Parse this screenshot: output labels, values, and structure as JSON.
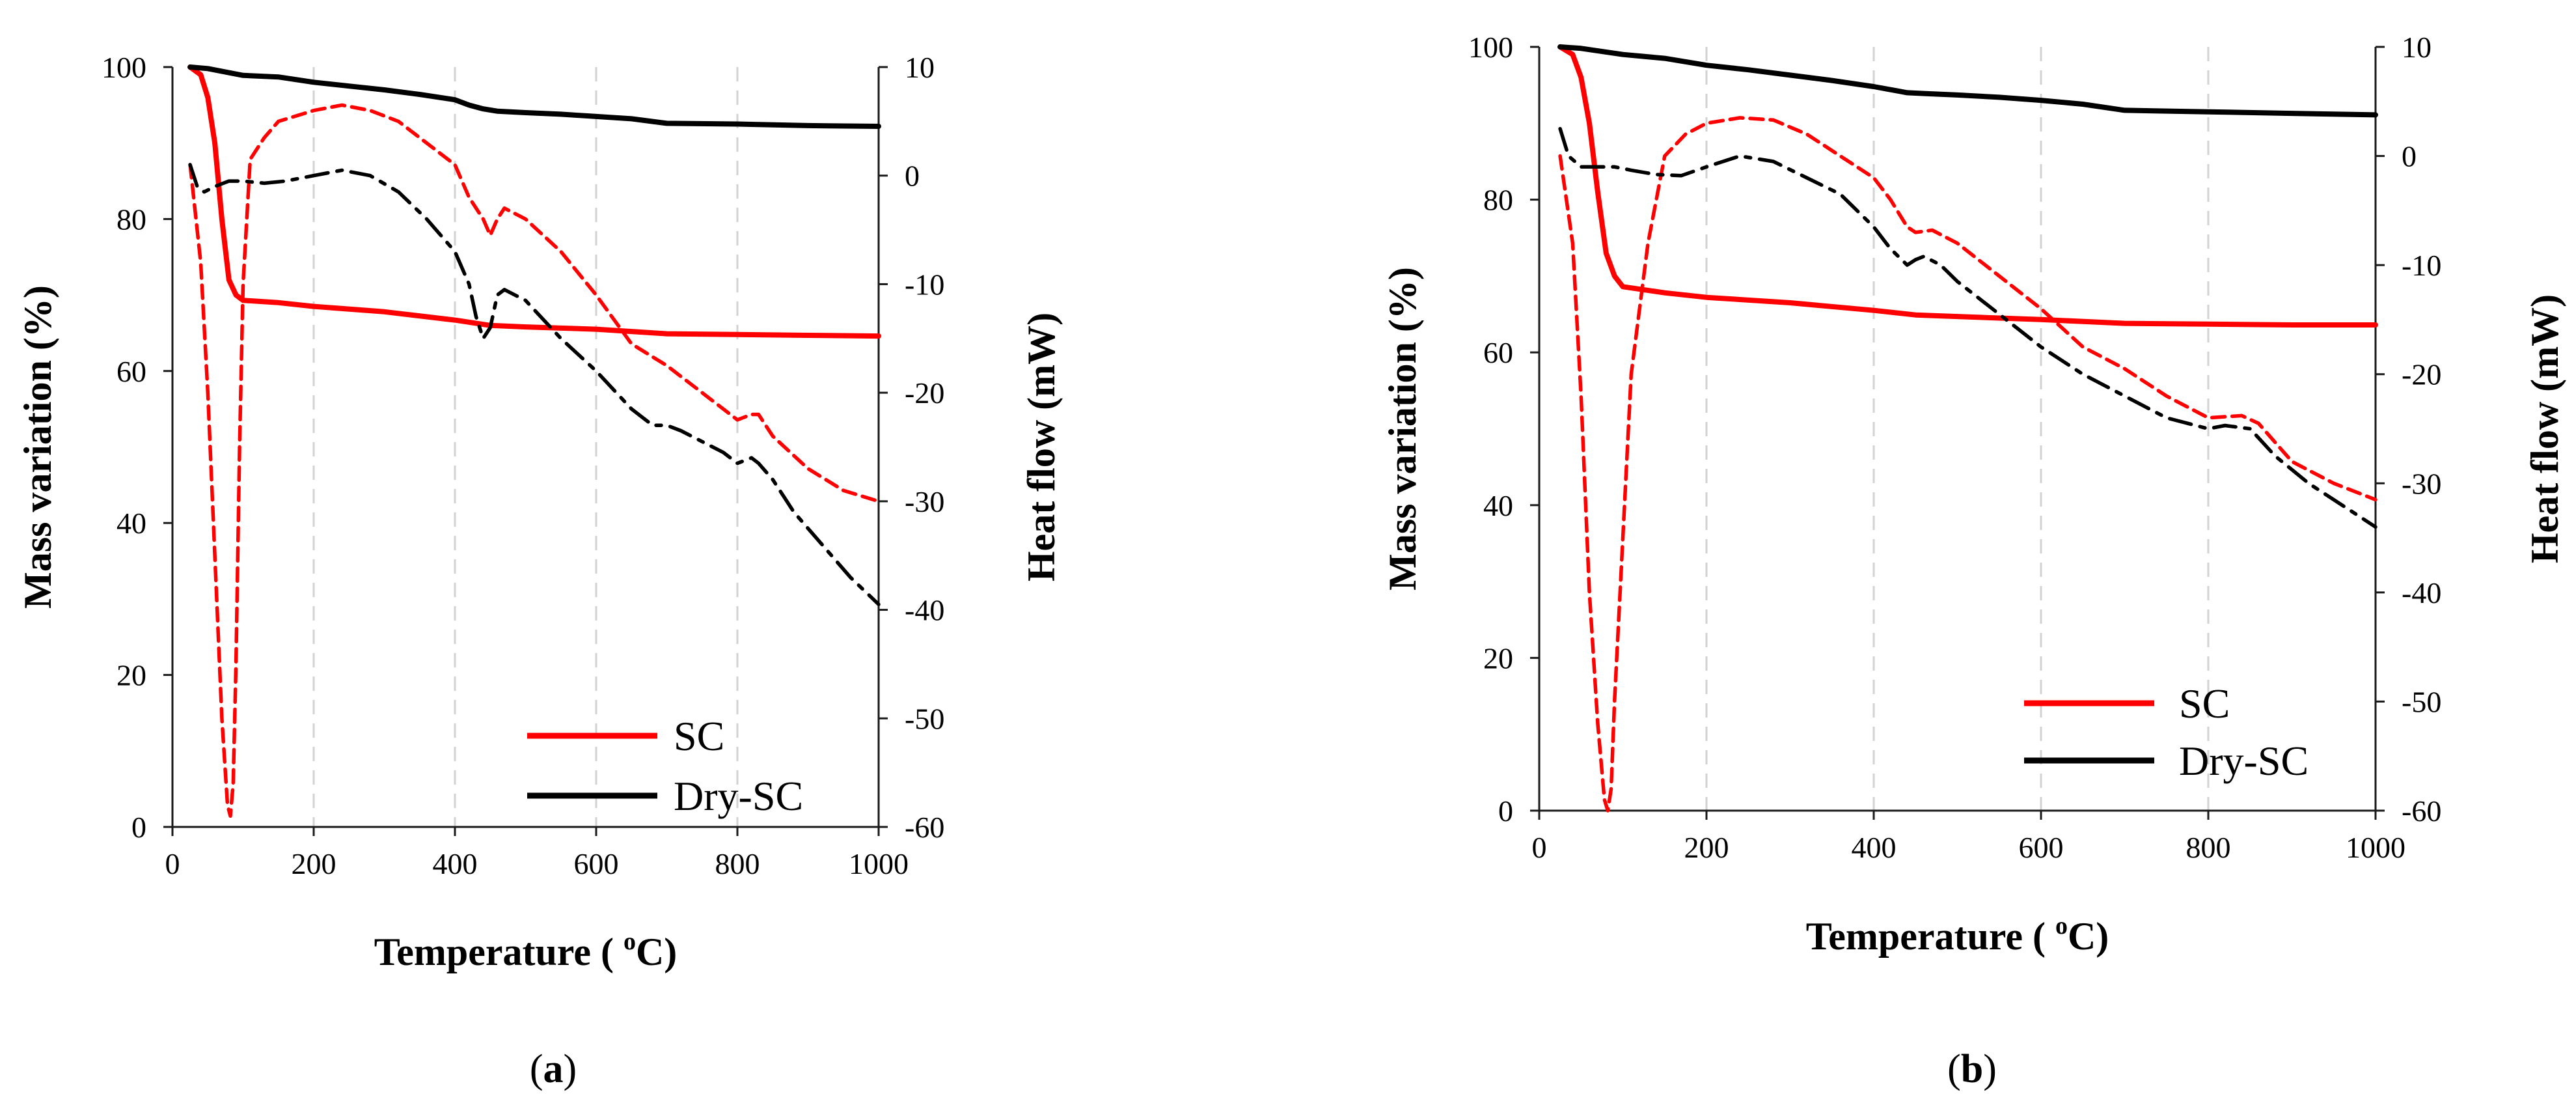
{
  "chart_data": [
    {
      "type": "line",
      "caption": "(a)",
      "caption_letter": "a",
      "xlabel": "Temperature ( °C)",
      "ylabel": "Mass variation  (%)",
      "y2label": "Heat flow (mW)",
      "xlim": [
        0,
        1000
      ],
      "ylim": [
        0,
        100
      ],
      "y2lim": [
        -60,
        10
      ],
      "xticks": [
        0,
        200,
        400,
        600,
        800,
        1000
      ],
      "yticks": [
        0,
        20,
        40,
        60,
        80,
        100
      ],
      "y2ticks": [
        10,
        0,
        -10,
        -20,
        -30,
        -40,
        -50,
        -60
      ],
      "xgrid": [
        200,
        400,
        600,
        800
      ],
      "legend": {
        "position": "bottom-right",
        "entries": [
          "SC",
          "Dry-SC"
        ]
      },
      "series": [
        {
          "name": "SC",
          "quantity": "mass",
          "axis": "left",
          "color": "#ff0000",
          "style": "solid",
          "x": [
            25,
            40,
            50,
            60,
            70,
            80,
            90,
            100,
            150,
            200,
            300,
            400,
            450,
            500,
            600,
            700,
            800,
            900,
            1000
          ],
          "y": [
            100,
            99,
            96,
            90,
            80,
            72,
            70,
            69.3,
            69,
            68.5,
            67.8,
            66.7,
            66,
            65.8,
            65.5,
            64.9,
            64.8,
            64.7,
            64.6
          ]
        },
        {
          "name": "Dry-SC",
          "quantity": "mass",
          "axis": "left",
          "color": "#000000",
          "style": "solid",
          "x": [
            25,
            50,
            100,
            150,
            200,
            250,
            300,
            350,
            400,
            420,
            440,
            460,
            500,
            550,
            600,
            650,
            700,
            800,
            900,
            1000
          ],
          "y": [
            100,
            99.8,
            98.9,
            98.7,
            98,
            97.5,
            97,
            96.4,
            95.7,
            95,
            94.5,
            94.2,
            94,
            93.8,
            93.5,
            93.2,
            92.6,
            92.5,
            92.3,
            92.2
          ]
        },
        {
          "name": "SC",
          "quantity": "heat flow",
          "axis": "right",
          "color": "#ff0000",
          "style": "dashed",
          "x": [
            25,
            40,
            50,
            60,
            70,
            78,
            82,
            86,
            90,
            95,
            100,
            110,
            130,
            150,
            200,
            240,
            280,
            320,
            360,
            400,
            420,
            440,
            450,
            460,
            470,
            500,
            550,
            600,
            650,
            700,
            750,
            800,
            820,
            830,
            850,
            900,
            950,
            1000
          ],
          "y": [
            1,
            -8,
            -20,
            -35,
            -50,
            -58,
            -59,
            -56,
            -45,
            -25,
            -10,
            1.5,
            3.5,
            5,
            6,
            6.5,
            6,
            5,
            3,
            1,
            -2,
            -4,
            -5.5,
            -4,
            -3,
            -4,
            -7,
            -11,
            -15.5,
            -17.5,
            -20,
            -22.5,
            -22,
            -22,
            -24,
            -27,
            -29,
            -30
          ]
        },
        {
          "name": "Dry-SC",
          "quantity": "heat flow",
          "axis": "right",
          "color": "#000000",
          "style": "dashdot",
          "x": [
            25,
            35,
            45,
            60,
            80,
            100,
            130,
            160,
            200,
            240,
            280,
            320,
            360,
            400,
            420,
            430,
            440,
            450,
            460,
            470,
            500,
            550,
            600,
            650,
            680,
            700,
            720,
            750,
            780,
            800,
            820,
            830,
            850,
            880,
            920,
            960,
            1000
          ],
          "y": [
            1,
            -1,
            -1.5,
            -1,
            -0.5,
            -0.5,
            -0.7,
            -0.5,
            0,
            0.5,
            0,
            -1.5,
            -4,
            -7,
            -10,
            -13,
            -15,
            -14,
            -11,
            -10.5,
            -11.5,
            -15,
            -18,
            -21.5,
            -23,
            -23,
            -23.5,
            -24.5,
            -25.5,
            -26.5,
            -26,
            -26.5,
            -28,
            -31,
            -34,
            -37,
            -39.5
          ]
        }
      ]
    },
    {
      "type": "line",
      "caption": "(b)",
      "caption_letter": "b",
      "xlabel": "Temperature ( °C)",
      "ylabel": "Mass variation (%)",
      "y2label": "Heat flow (mW)",
      "xlim": [
        0,
        1000
      ],
      "ylim": [
        0,
        100
      ],
      "y2lim": [
        -60,
        10
      ],
      "xticks": [
        0,
        200,
        400,
        600,
        800,
        1000
      ],
      "yticks": [
        0,
        20,
        40,
        60,
        80,
        100
      ],
      "y2ticks": [
        10,
        0,
        -10,
        -20,
        -30,
        -40,
        -50,
        -60
      ],
      "xgrid": [
        200,
        400,
        600,
        800
      ],
      "legend": {
        "position": "bottom-right",
        "entries": [
          "SC",
          "Dry-SC"
        ]
      },
      "series": [
        {
          "name": "SC",
          "quantity": "mass",
          "axis": "left",
          "color": "#ff0000",
          "style": "solid",
          "x": [
            25,
            40,
            50,
            60,
            70,
            80,
            90,
            100,
            150,
            200,
            300,
            400,
            450,
            500,
            600,
            700,
            800,
            900,
            1000
          ],
          "y": [
            100,
            99,
            96,
            90,
            81,
            73,
            70,
            68.6,
            67.8,
            67.2,
            66.5,
            65.5,
            64.9,
            64.7,
            64.3,
            63.8,
            63.7,
            63.6,
            63.6
          ]
        },
        {
          "name": "Dry-SC",
          "quantity": "mass",
          "axis": "left",
          "color": "#000000",
          "style": "solid",
          "x": [
            25,
            50,
            100,
            150,
            200,
            250,
            300,
            350,
            400,
            420,
            440,
            460,
            500,
            550,
            600,
            650,
            700,
            800,
            900,
            1000
          ],
          "y": [
            100,
            99.8,
            99,
            98.5,
            97.6,
            97,
            96.3,
            95.6,
            94.8,
            94.4,
            94,
            93.9,
            93.7,
            93.4,
            93,
            92.5,
            91.7,
            91.5,
            91.3,
            91.1
          ]
        },
        {
          "name": "SC",
          "quantity": "heat flow",
          "axis": "right",
          "color": "#ff0000",
          "style": "dashed",
          "x": [
            25,
            40,
            50,
            60,
            70,
            78,
            82,
            86,
            90,
            100,
            110,
            130,
            150,
            175,
            200,
            240,
            280,
            320,
            360,
            400,
            420,
            440,
            450,
            470,
            500,
            550,
            600,
            650,
            700,
            750,
            800,
            840,
            860,
            900,
            950,
            1000
          ],
          "y": [
            0,
            -8,
            -22,
            -40,
            -52,
            -59,
            -60,
            -58,
            -50,
            -35,
            -20,
            -8,
            0,
            2,
            3,
            3.5,
            3.3,
            2,
            0,
            -2,
            -4,
            -6.5,
            -7,
            -6.8,
            -8,
            -11,
            -14,
            -17.5,
            -19.5,
            -22,
            -24,
            -23.8,
            -24.5,
            -28,
            -30,
            -31.5
          ]
        },
        {
          "name": "Dry-SC",
          "quantity": "heat flow",
          "axis": "right",
          "color": "#000000",
          "style": "dashdot",
          "x": [
            25,
            35,
            50,
            70,
            90,
            110,
            140,
            170,
            200,
            240,
            280,
            320,
            360,
            400,
            420,
            440,
            450,
            460,
            480,
            500,
            550,
            600,
            650,
            700,
            750,
            800,
            820,
            850,
            880,
            920,
            960,
            1000
          ],
          "y": [
            2.5,
            0,
            -1,
            -1,
            -1,
            -1.3,
            -1.7,
            -1.8,
            -1,
            0,
            -0.5,
            -2,
            -3.5,
            -6.5,
            -8.5,
            -10,
            -9.5,
            -9.2,
            -10,
            -11.5,
            -14.5,
            -17.5,
            -20,
            -22,
            -24,
            -25,
            -24.7,
            -25,
            -27.5,
            -30,
            -32,
            -34
          ]
        }
      ]
    }
  ]
}
